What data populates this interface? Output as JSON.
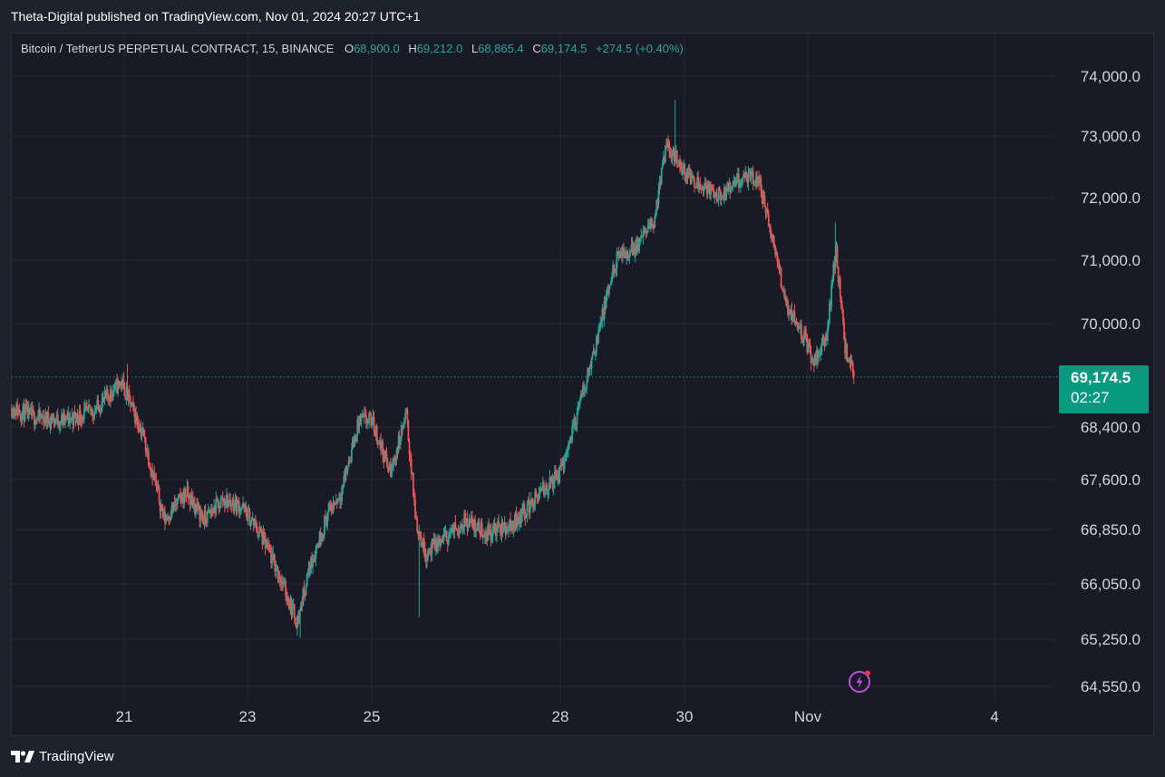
{
  "header": {
    "published": "Theta-Digital published on TradingView.com, Nov 01, 2024 20:27 UTC+1"
  },
  "legend": {
    "symbol": "Bitcoin / TetherUS PERPETUAL CONTRACT, 15, BINANCE",
    "open_label": "O",
    "open": "68,900.0",
    "high_label": "H",
    "high": "69,212.0",
    "low_label": "L",
    "low": "68,865.4",
    "close_label": "C",
    "close": "69,174.5",
    "change": "+274.5 (+0.40%)"
  },
  "price_tag": {
    "price": "69,174.5",
    "countdown": "02:27"
  },
  "footer": {
    "brand": "TradingView"
  },
  "colors": {
    "background": "#181a25",
    "grid": "#262a36",
    "up": "#26a69a",
    "down": "#ef5350",
    "price_tag": "#089981",
    "bolt": "#c24ee0"
  },
  "icons": [
    "tradingview-logo-icon",
    "lightning-icon"
  ],
  "chart_data": {
    "type": "candlestick",
    "title": "Bitcoin / TetherUS PERPETUAL CONTRACT, 15, BINANCE",
    "xlabel": "",
    "ylabel": "",
    "x_ticks": [
      {
        "label": "21",
        "day": 21
      },
      {
        "label": "23",
        "day": 23
      },
      {
        "label": "25",
        "day": 25
      },
      {
        "label": "28",
        "day": 28
      },
      {
        "label": "30",
        "day": 30
      },
      {
        "label": "Nov",
        "day": 32
      },
      {
        "label": "4",
        "day": 35
      }
    ],
    "y_ticks": [
      {
        "label": "74,000.0",
        "value": 74000
      },
      {
        "label": "73,000.0",
        "value": 73000
      },
      {
        "label": "72,000.0",
        "value": 72000
      },
      {
        "label": "71,000.0",
        "value": 71000
      },
      {
        "label": "70,000.0",
        "value": 70000
      },
      {
        "label": "68,400.0",
        "value": 68400
      },
      {
        "label": "67,600.0",
        "value": 67600
      },
      {
        "label": "66,850.0",
        "value": 66850
      },
      {
        "label": "66,050.0",
        "value": 66050
      },
      {
        "label": "65,250.0",
        "value": 65250
      },
      {
        "label": "64,550.0",
        "value": 64550
      }
    ],
    "ylim": [
      64450,
      74450
    ],
    "xlim": [
      19.13,
      36.0
    ],
    "current_price": 69174.5,
    "path_days": [
      19.13,
      19.5,
      20.0,
      20.5,
      20.95,
      21.3,
      21.65,
      22.0,
      22.3,
      22.6,
      22.9,
      23.2,
      23.5,
      23.8,
      24.0,
      24.3,
      24.5,
      24.8,
      25.0,
      25.3,
      25.55,
      25.7,
      25.85,
      26.0,
      26.2,
      26.5,
      26.8,
      27.2,
      27.6,
      28.0,
      28.3,
      28.6,
      28.9,
      29.2,
      29.5,
      29.7,
      29.85,
      30.0,
      30.3,
      30.6,
      30.9,
      31.2,
      31.5,
      31.65,
      31.85,
      32.1,
      32.3,
      32.45,
      32.6,
      32.75
    ],
    "path_prices": [
      68700,
      68550,
      68500,
      68650,
      69100,
      68300,
      67000,
      67400,
      67000,
      67300,
      67200,
      66800,
      66200,
      65500,
      66300,
      67100,
      67400,
      68500,
      68500,
      67700,
      68600,
      67000,
      66500,
      66600,
      66750,
      67000,
      66800,
      66900,
      67300,
      67700,
      68700,
      69800,
      71000,
      71200,
      71600,
      72800,
      72700,
      72400,
      72200,
      72000,
      72300,
      72300,
      71000,
      70300,
      70000,
      69400,
      69800,
      71200,
      69600,
      69174.5
    ],
    "notable_extremes": [
      {
        "day": 21.05,
        "high": 69380
      },
      {
        "day": 23.85,
        "low": 65270
      },
      {
        "day": 25.75,
        "low": 65570
      },
      {
        "day": 29.85,
        "high": 73600
      },
      {
        "day": 32.45,
        "high": 71600
      }
    ],
    "candles_generated_from_path": true
  }
}
